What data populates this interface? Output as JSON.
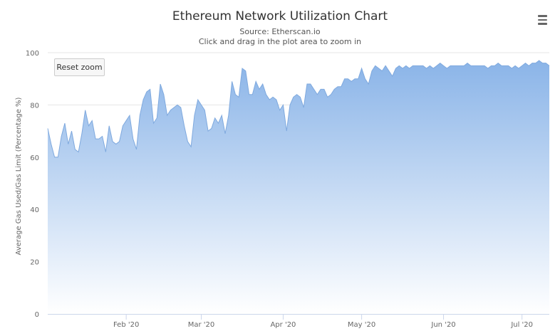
{
  "header": {
    "title": "Ethereum Network Utilization Chart",
    "source": "Source: Etherscan.io",
    "hint": "Click and drag in the plot area to zoom in"
  },
  "toolbar": {
    "reset_zoom_label": "Reset zoom",
    "menu_icon": "hamburger-menu-icon"
  },
  "colors": {
    "area_top": "#8ab4e8",
    "area_bottom": "#ffffff",
    "line": "#7fa9de",
    "grid": "#e6e6e6",
    "axis": "#ccd6eb"
  },
  "chart_data": {
    "type": "area",
    "ylabel": "Average Gas Used/Gas Limit (Percentage %)",
    "ylim": [
      0,
      100
    ],
    "y_ticks": [
      0,
      20,
      40,
      60,
      80,
      100
    ],
    "x_ticks": [
      "Feb '20",
      "Mar '20",
      "Apr '20",
      "May '20",
      "Jun '20",
      "Jul '20"
    ],
    "grid": true,
    "legend": "none",
    "values": [
      71,
      65,
      60,
      60,
      68,
      73,
      65,
      70,
      63,
      62,
      69,
      78,
      72,
      74,
      67,
      67,
      68,
      62,
      72,
      66,
      65,
      66,
      72,
      74,
      76,
      67,
      63,
      76,
      82,
      85,
      86,
      73,
      75,
      88,
      84,
      76,
      78,
      79,
      80,
      79,
      72,
      66,
      64,
      76,
      82,
      80,
      78,
      70,
      71,
      75,
      73,
      76,
      69,
      76,
      89,
      84,
      83,
      94,
      93,
      84,
      84,
      89,
      86,
      88,
      84,
      82,
      83,
      82,
      78,
      80,
      70,
      80,
      83,
      84,
      83,
      79,
      88,
      88,
      86,
      84,
      86,
      86,
      83,
      84,
      86,
      87,
      87,
      90,
      90,
      89,
      90,
      90,
      94,
      90,
      88,
      93,
      95,
      94,
      93,
      95,
      93,
      91,
      94,
      95,
      94,
      95,
      94,
      95,
      95,
      95,
      95,
      94,
      95,
      94,
      95,
      96,
      95,
      94,
      95,
      95,
      95,
      95,
      95,
      96,
      95,
      95,
      95,
      95,
      95,
      94,
      95,
      95,
      96,
      95,
      95,
      95,
      94,
      95,
      94,
      95,
      96,
      95,
      96,
      96,
      97,
      96,
      96,
      95
    ],
    "x_tick_index": [
      23,
      45,
      69,
      92,
      116,
      139
    ]
  }
}
